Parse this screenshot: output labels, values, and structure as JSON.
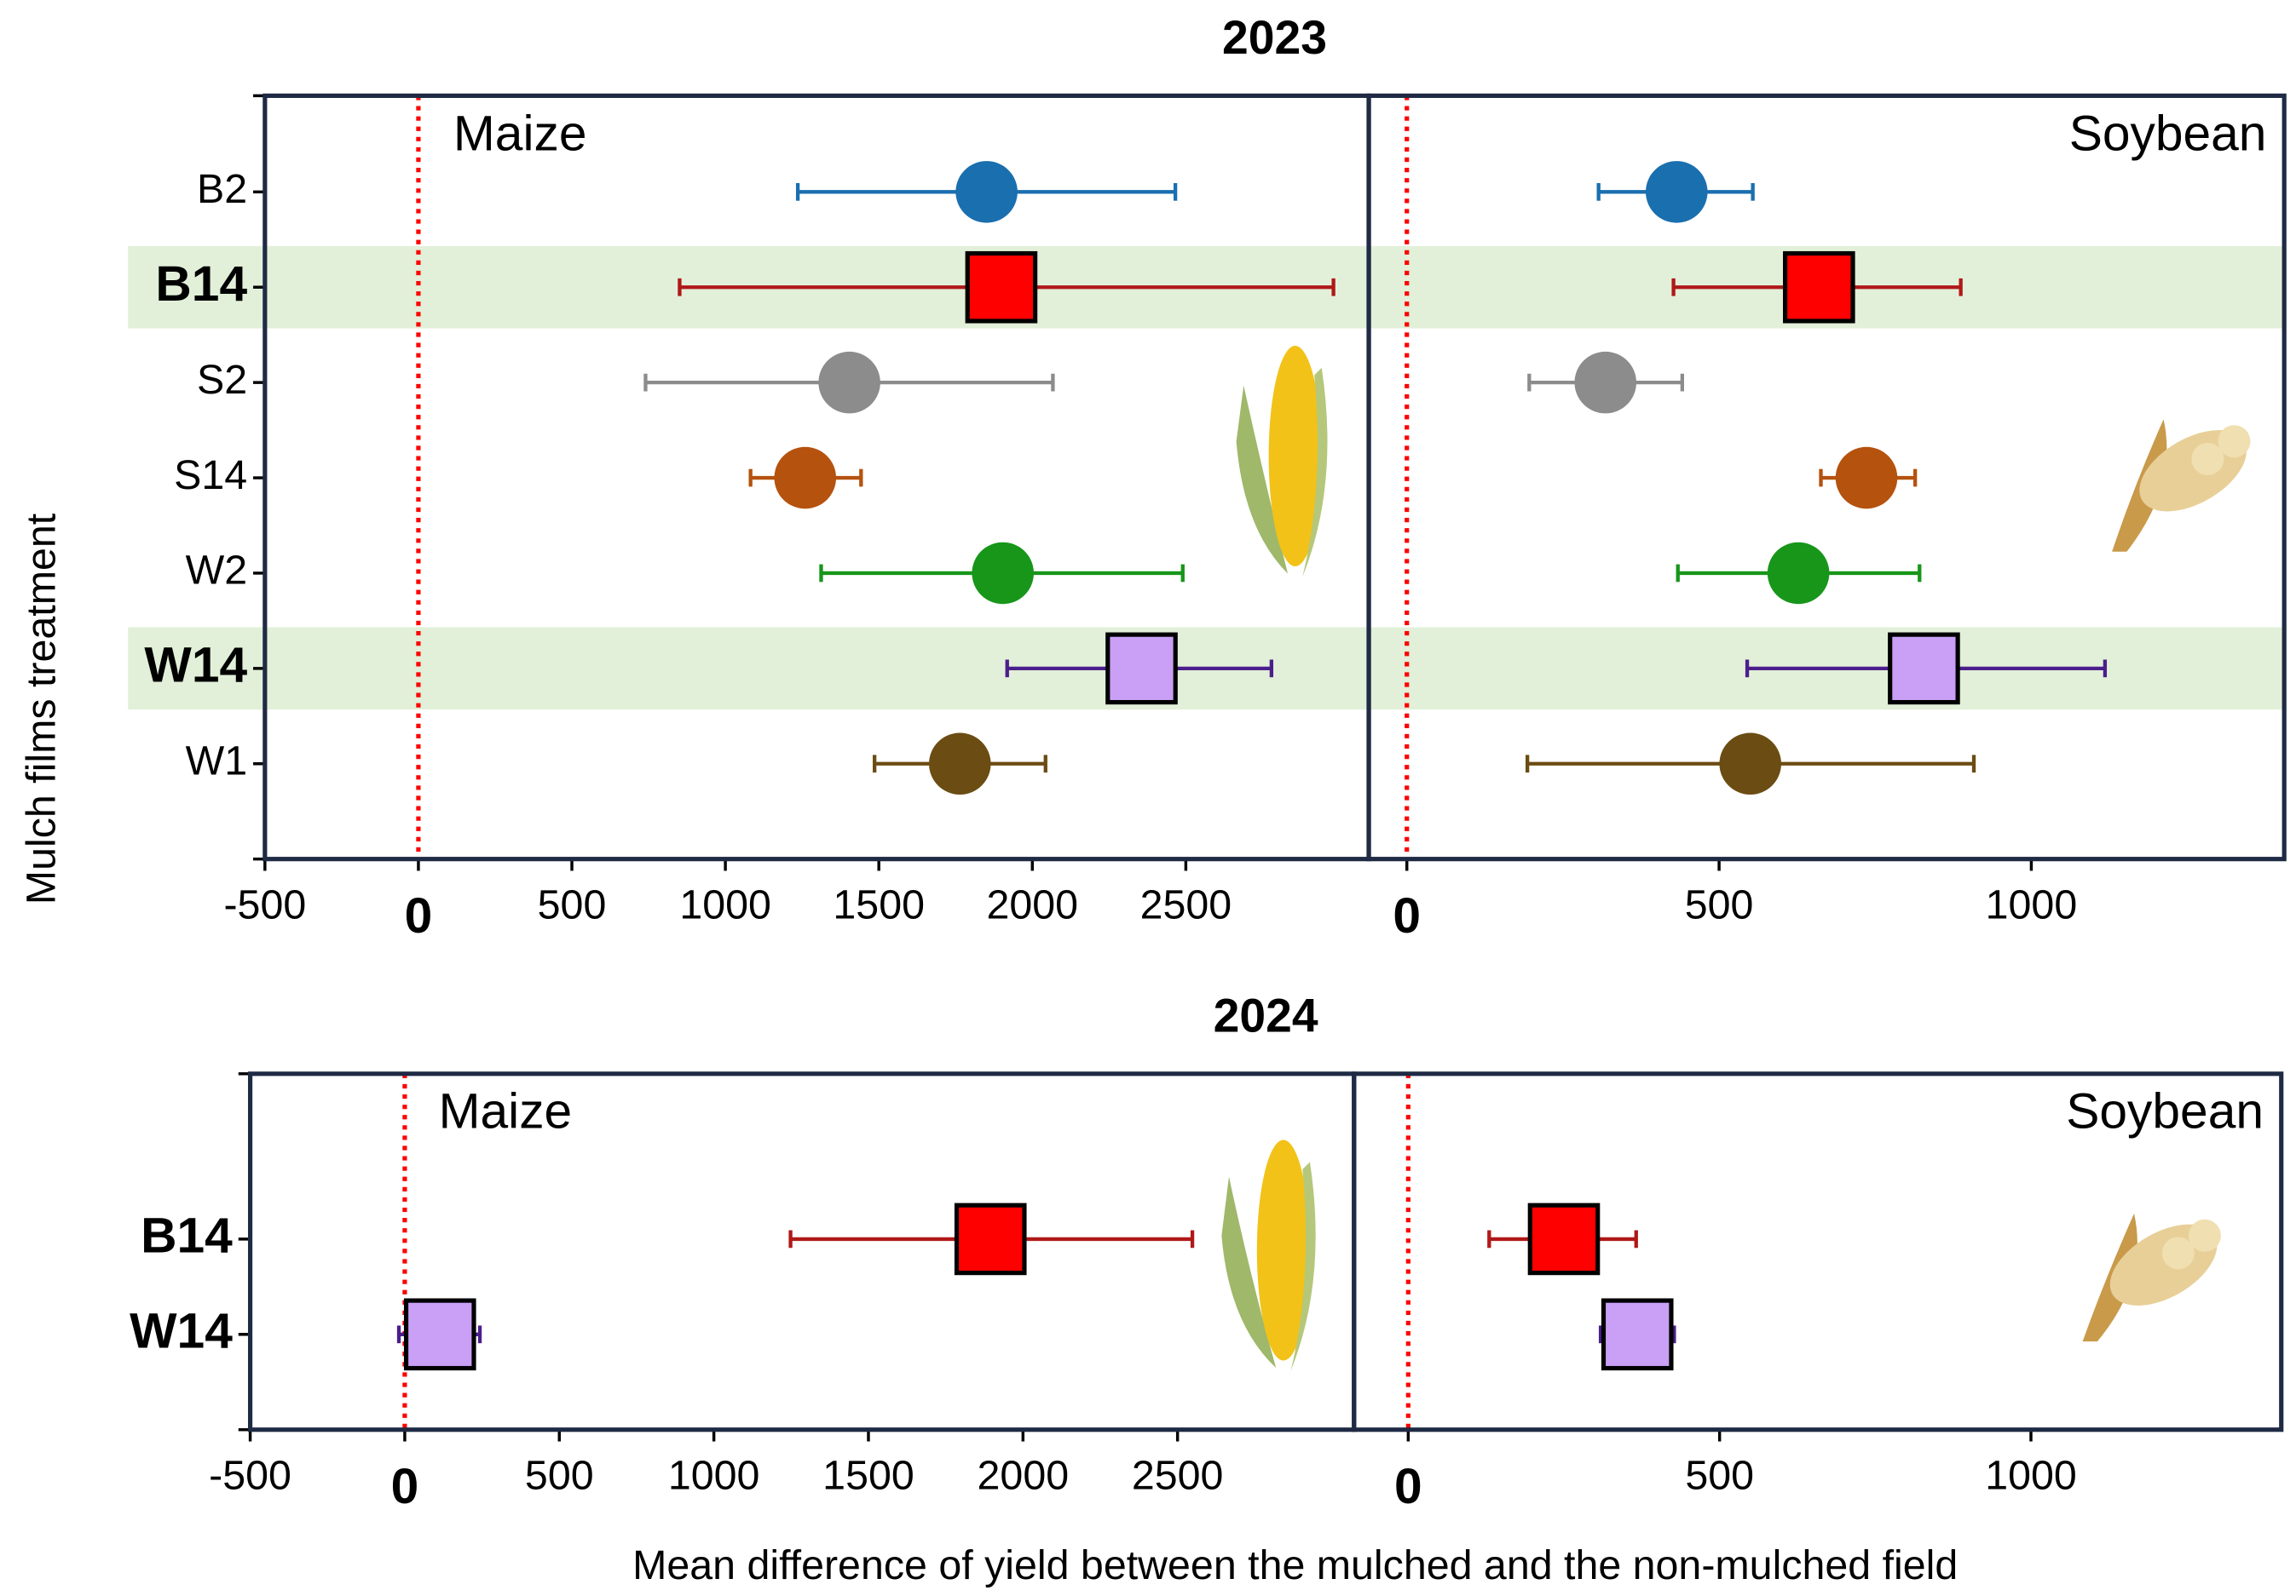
{
  "y_label": "Mulch films treatment",
  "x_label": "Mean difference of yield between the mulched and the non-mulched field",
  "chart_data": [
    {
      "type": "forest",
      "title": "2023",
      "categories": [
        "B2",
        "B14",
        "S2",
        "S14",
        "W2",
        "W14",
        "W1"
      ],
      "colors": [
        "#1a6faf",
        "#ff0000",
        "#8c8c8c",
        "#b5520e",
        "#17961a",
        "#c9a0f5",
        "#6b4c12"
      ],
      "bar_colors": [
        "#1a6faf",
        "#b01818",
        "#8c8c8c",
        "#b5520e",
        "#17961a",
        "#4b1e8c",
        "#6b4c12"
      ],
      "markers": [
        "circle",
        "square",
        "circle",
        "circle",
        "circle",
        "square",
        "circle"
      ],
      "highlight": [
        false,
        true,
        false,
        false,
        false,
        true,
        false
      ],
      "highlight_color": "#e2f0d9",
      "panels": [
        {
          "label": "Maize",
          "label_position": "upper left",
          "xlim": [
            -500,
            3096
          ],
          "xticks": [
            -500,
            0,
            500,
            1000,
            1500,
            2000,
            2500
          ],
          "zero_color": "#ff0000",
          "values": [
            1851,
            1899,
            1404,
            1260,
            1904,
            2356,
            1764
          ],
          "lower": [
            1236,
            851,
            740,
            1082,
            1312,
            1918,
            1486
          ],
          "upper": [
            2466,
            2981,
            2067,
            1442,
            2490,
            2779,
            2043
          ]
        },
        {
          "label": "Soybean",
          "label_position": "upper right",
          "xlim": [
            -61,
            1405
          ],
          "xticks": [
            0,
            500,
            1000
          ],
          "zero_color": "#ff0000",
          "values": [
            432,
            660,
            318,
            736,
            627,
            828,
            550
          ],
          "lower": [
            307,
            427,
            196,
            663,
            434,
            545,
            193
          ],
          "upper": [
            554,
            887,
            441,
            814,
            821,
            1118,
            908
          ]
        }
      ]
    },
    {
      "type": "forest",
      "title": "2024",
      "categories": [
        "B14",
        "W14"
      ],
      "colors": [
        "#ff0000",
        "#c9a0f5"
      ],
      "bar_colors": [
        "#b01818",
        "#4b1e8c"
      ],
      "markers": [
        "square",
        "square"
      ],
      "highlight": [
        true,
        true
      ],
      "panels": [
        {
          "label": "Maize",
          "label_position": "upper left",
          "xlim": [
            -500,
            3071
          ],
          "xticks": [
            -500,
            0,
            500,
            1000,
            1500,
            2000,
            2500
          ],
          "zero_color": "#ff0000",
          "values": [
            1895,
            114
          ],
          "lower": [
            1248,
            -19
          ],
          "upper": [
            2548,
            243
          ]
        },
        {
          "label": "Soybean",
          "label_position": "upper right",
          "xlim": [
            -87,
            1402
          ],
          "xticks": [
            0,
            500,
            1000
          ],
          "zero_color": "#ff0000",
          "values": [
            250,
            368
          ],
          "lower": [
            130,
            309
          ],
          "upper": [
            366,
            427
          ]
        }
      ]
    }
  ]
}
